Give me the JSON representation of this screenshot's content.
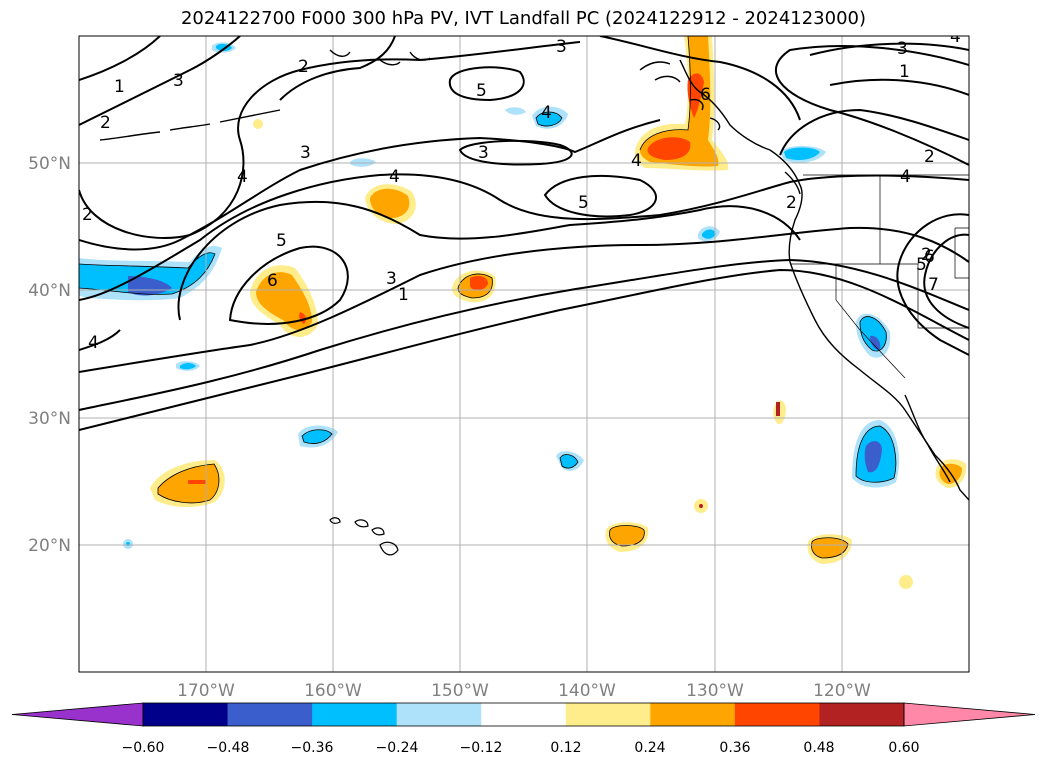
{
  "title": "2024122700 F000 300 hPa PV, IVT Landfall PC (2024122912 - 2024123000)",
  "map": {
    "projection": "PlateCarree",
    "lon_range": [
      -180,
      -110
    ],
    "lat_range": [
      10,
      60
    ],
    "gridlines": true,
    "lat_labels": [
      "50°N",
      "40°N",
      "30°N",
      "20°N"
    ],
    "lon_labels": [
      "170°W",
      "160°W",
      "150°W",
      "140°W",
      "130°W",
      "120°W"
    ]
  },
  "colorbar": {
    "extend": "both",
    "colors": [
      "#9932CC",
      "#00008B",
      "#3A5FCD",
      "#00BFFF",
      "#ADE2FA",
      "#FFFFFF",
      "#FFEC8B",
      "#FFA500",
      "#FF4500",
      "#B22222",
      "#FF88A8"
    ],
    "tick_labels": [
      "−0.60",
      "−0.48",
      "−0.36",
      "−0.24",
      "−0.12",
      "0.12",
      "0.24",
      "0.36",
      "0.48",
      "0.60"
    ]
  },
  "pv_contour_labels": [
    "1",
    "2",
    "3",
    "3",
    "2",
    "3",
    "4",
    "2",
    "3",
    "5",
    "4",
    "3",
    "4",
    "5",
    "4",
    "3",
    "1",
    "2",
    "4",
    "5",
    "6",
    "2",
    "1",
    "4",
    "2",
    "6",
    "5",
    "4",
    "7",
    "6"
  ]
}
